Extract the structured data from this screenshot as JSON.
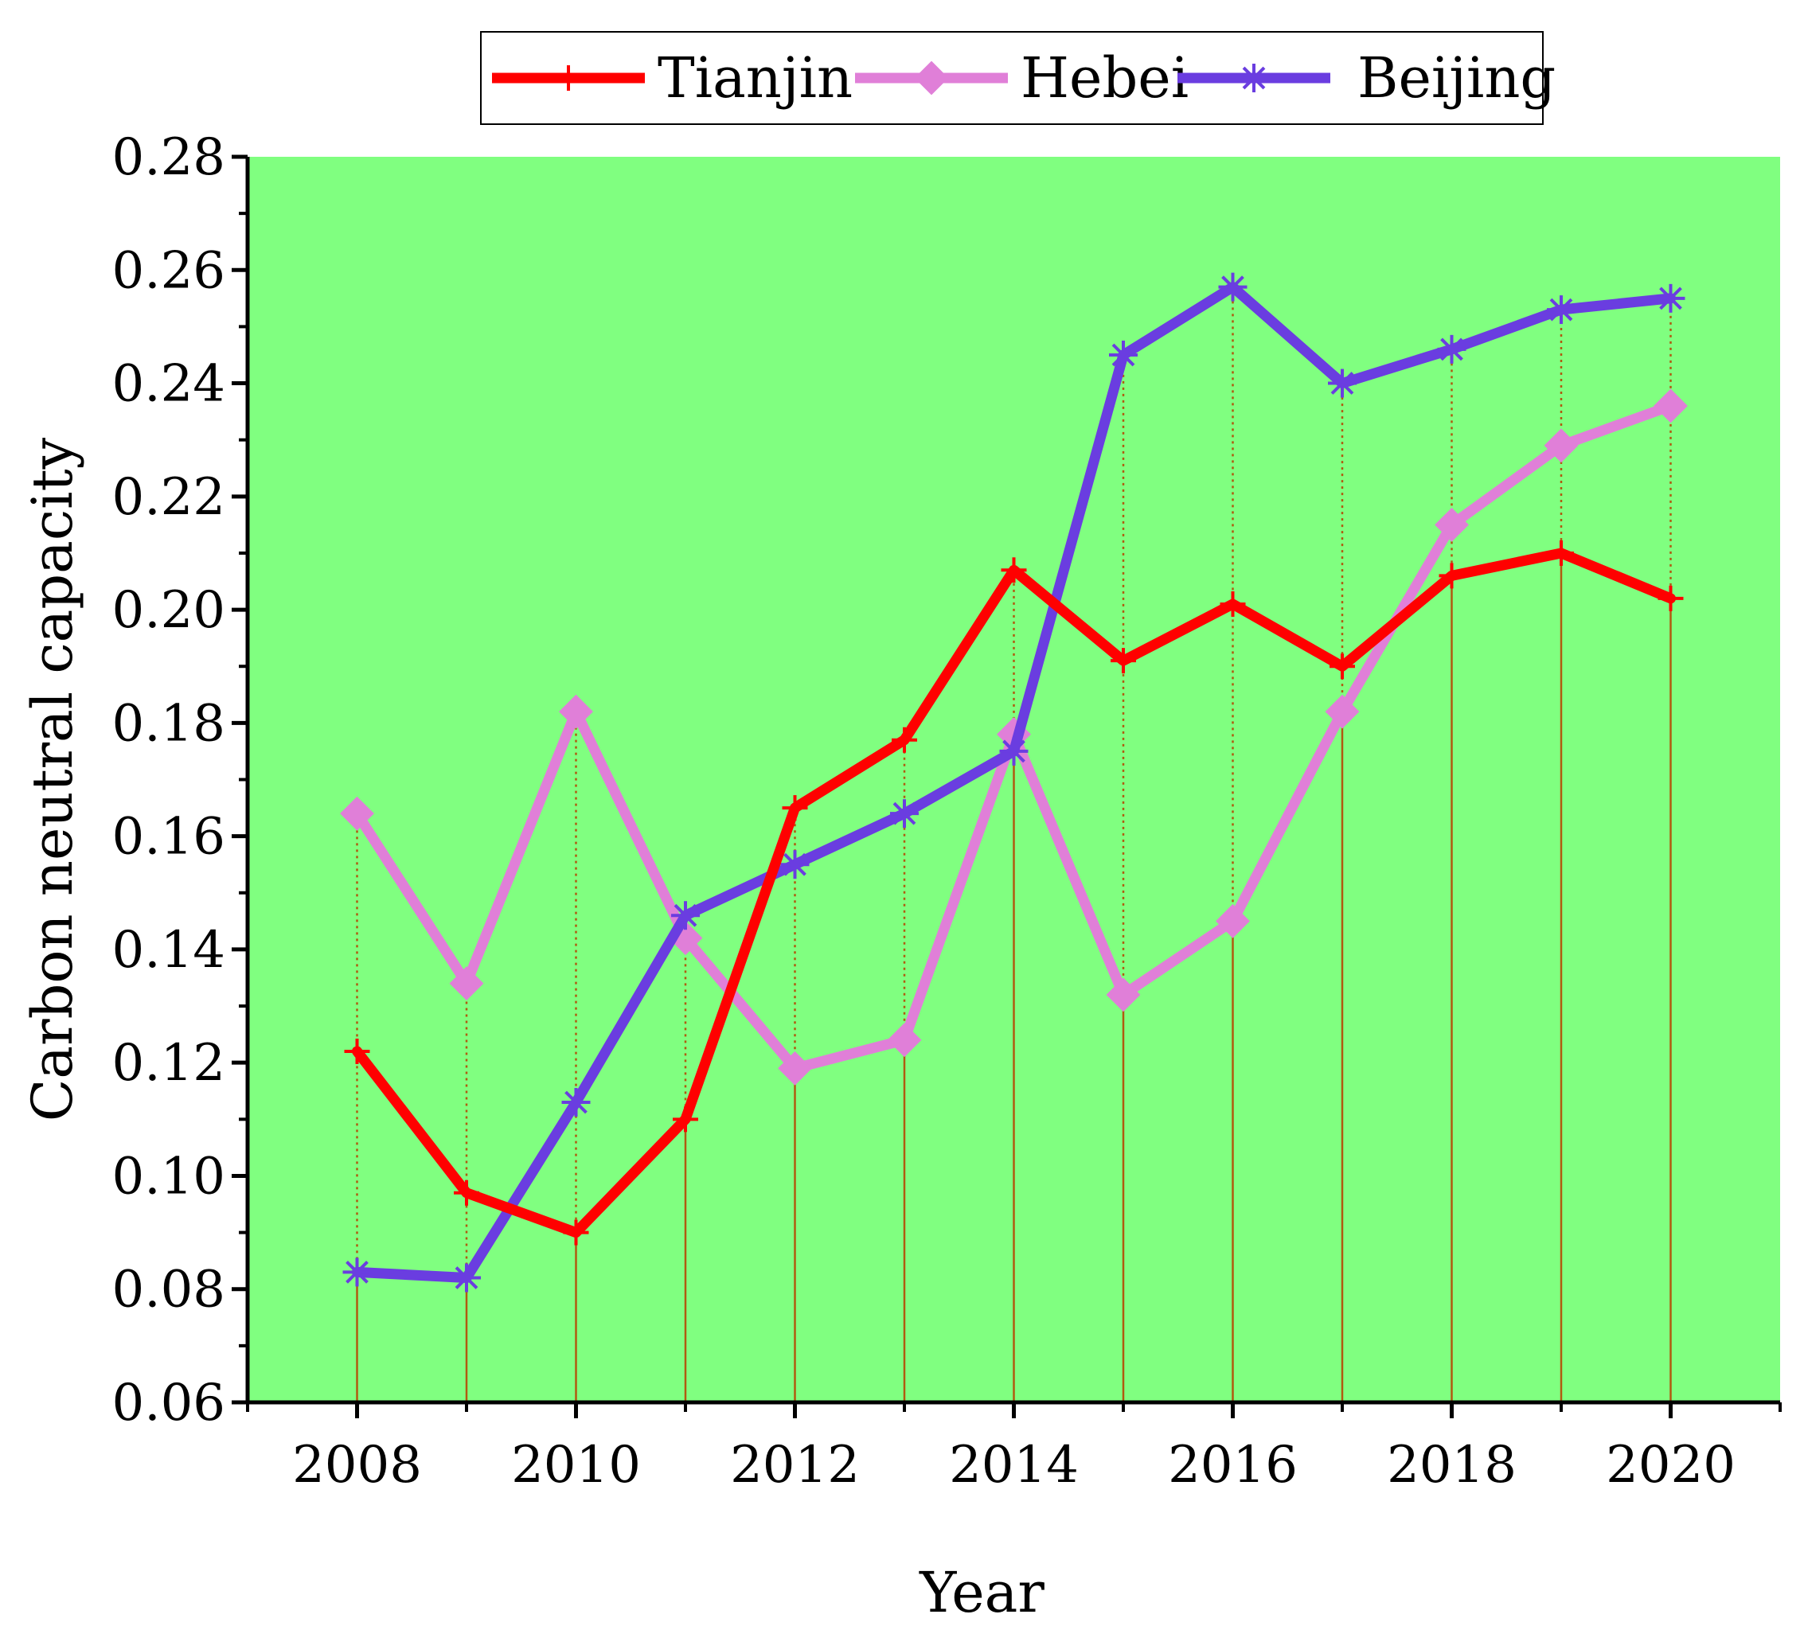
{
  "chart_data": {
    "type": "line",
    "title": "",
    "xlabel": "Year",
    "ylabel": "Carbon neutral capacity",
    "x": [
      2008,
      2009,
      2010,
      2011,
      2012,
      2013,
      2014,
      2015,
      2016,
      2017,
      2018,
      2019,
      2020
    ],
    "xlim": [
      2007,
      2021
    ],
    "ylim": [
      0.06,
      0.28
    ],
    "x_ticks": [
      "2008",
      "2010",
      "2012",
      "2014",
      "2016",
      "2018",
      "2020"
    ],
    "y_ticks": [
      "0.06",
      "0.08",
      "0.10",
      "0.12",
      "0.14",
      "0.16",
      "0.18",
      "0.20",
      "0.22",
      "0.24",
      "0.26",
      "0.28"
    ],
    "grid": false,
    "drop_lines": true,
    "legend_position": "top",
    "background_color": "#80ff80",
    "series": [
      {
        "name": "Tianjin",
        "color": "#ff0000",
        "marker": "plus",
        "values": [
          0.122,
          0.097,
          0.09,
          0.11,
          0.165,
          0.177,
          0.207,
          0.191,
          0.201,
          0.19,
          0.206,
          0.21,
          0.202
        ]
      },
      {
        "name": "Hebei",
        "color": "#e07fd8",
        "marker": "diamond",
        "values": [
          0.164,
          0.134,
          0.182,
          0.142,
          0.119,
          0.124,
          0.178,
          0.132,
          0.145,
          0.182,
          0.215,
          0.229,
          0.236
        ]
      },
      {
        "name": "Beijing",
        "color": "#6a3de0",
        "marker": "asterisk",
        "values": [
          0.083,
          0.082,
          0.113,
          0.146,
          0.155,
          0.164,
          0.175,
          0.245,
          0.257,
          0.24,
          0.246,
          0.253,
          0.255
        ]
      }
    ]
  }
}
